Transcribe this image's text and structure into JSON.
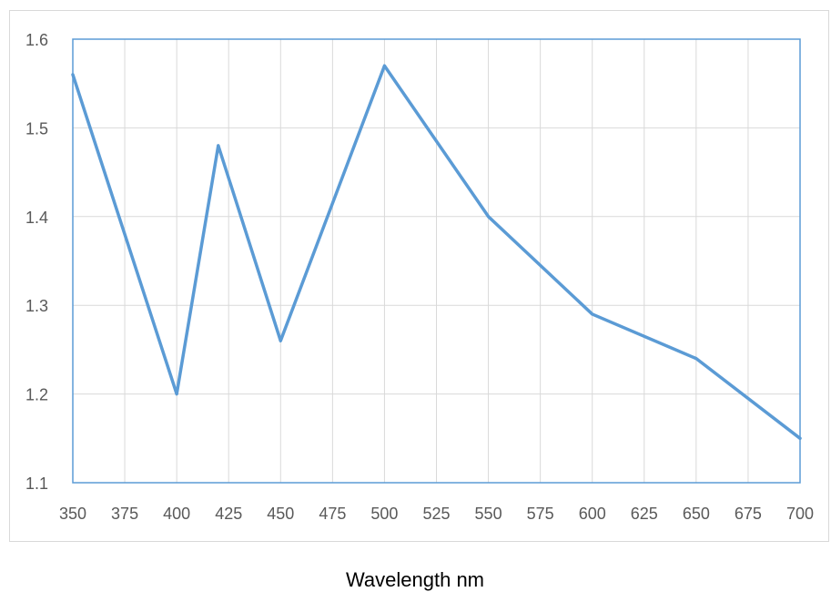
{
  "chart_data": {
    "type": "line",
    "title": "",
    "xlabel": "Wavelength nm",
    "ylabel": "",
    "x": [
      350,
      400,
      420,
      450,
      500,
      550,
      600,
      650,
      700
    ],
    "series": [
      {
        "values": [
          1.56,
          1.2,
          1.48,
          1.26,
          1.57,
          1.4,
          1.29,
          1.24,
          1.15
        ]
      }
    ],
    "x_ticks": [
      "350",
      "375",
      "400",
      "425",
      "450",
      "475",
      "500",
      "525",
      "550",
      "575",
      "600",
      "625",
      "650",
      "675",
      "700"
    ],
    "y_ticks": [
      "1.1",
      "1.2",
      "1.3",
      "1.4",
      "1.5",
      "1.6"
    ],
    "xlim": [
      350,
      700
    ],
    "ylim": [
      1.1,
      1.6
    ],
    "grid": true,
    "legend": "none",
    "colors": {
      "line": "#5B9BD5",
      "plot_border": "#5B9BD5",
      "grid": "#d9d9d9",
      "tick_text": "#595959"
    }
  }
}
